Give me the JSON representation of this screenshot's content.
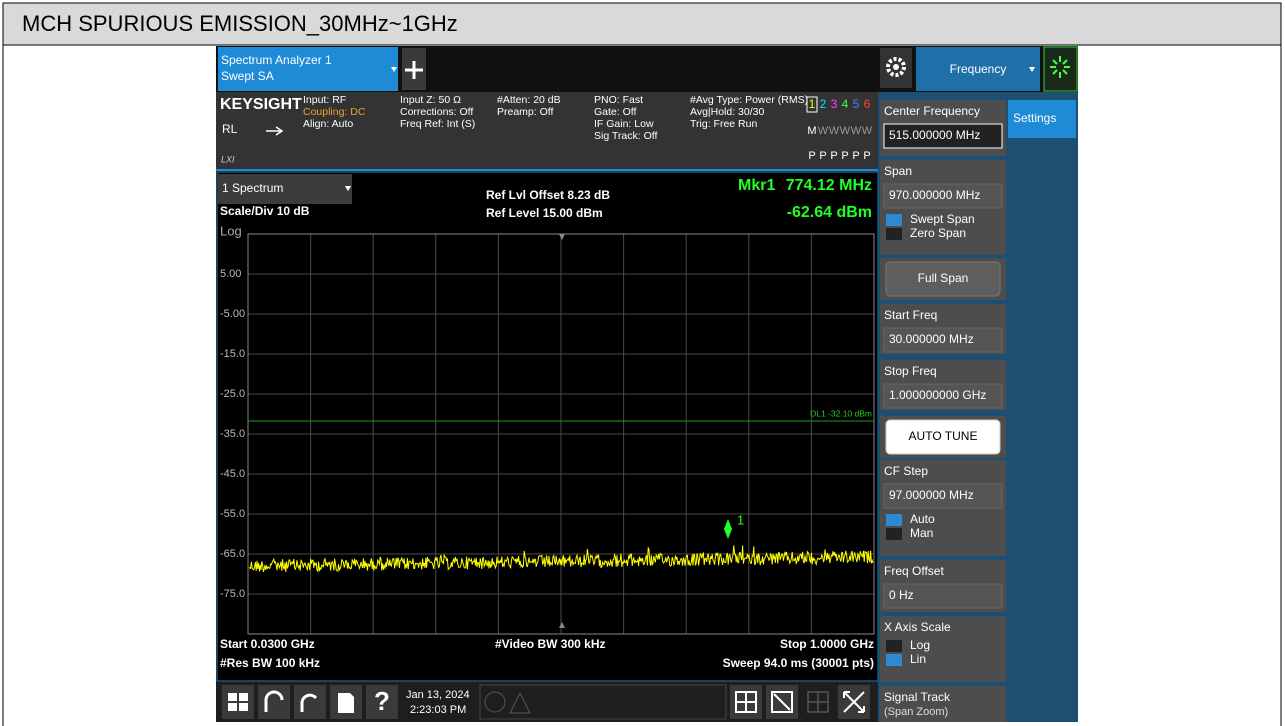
{
  "title": "MCH SPURIOUS EMISSION_30MHz~1GHz",
  "tabs": {
    "analyzer": [
      "Spectrum Analyzer 1",
      "Swept SA"
    ],
    "menu": "Frequency",
    "settings": "Settings"
  },
  "header": {
    "brand": "KEYSIGHT",
    "rl": "RL",
    "lxi": "LXI",
    "columns": [
      [
        "Input: RF",
        "Coupling: DC",
        "Align: Auto"
      ],
      [
        "Input Z: 50 Ω",
        "Corrections: Off",
        "Freq Ref: Int (S)"
      ],
      [
        "#Atten: 20 dB",
        "Preamp: Off"
      ],
      [
        "PNO: Fast",
        "Gate: Off",
        "IF Gain: Low",
        "Sig Track: Off"
      ],
      [
        "#Avg Type: Power (RMS)",
        "Avg|Hold: 30/30",
        "Trig: Free Run"
      ]
    ],
    "traces": {
      "numbers": [
        "1",
        "2",
        "3",
        "4",
        "5",
        "6"
      ],
      "number_colors": [
        "#ffff00",
        "#00e5ff",
        "#ff40ff",
        "#40ff40",
        "#4080ff",
        "#ff4040"
      ],
      "modes": [
        "M",
        "W",
        "W",
        "W",
        "W",
        "W"
      ],
      "detectors": [
        "P",
        "P",
        "P",
        "P",
        "P",
        "P"
      ]
    }
  },
  "plot": {
    "window": "1 Spectrum",
    "scale": "Scale/Div 10 dB",
    "log": "Log",
    "ref_offset": "Ref Lvl Offset 8.23 dB",
    "ref_level": "Ref Level 15.00 dBm",
    "marker": {
      "name": "Mkr1",
      "freq": "774.12 MHz",
      "level": "-62.64 dBm",
      "index": "1"
    },
    "y_labels": [
      "5.00",
      "-5.00",
      "-15.0",
      "-25.0",
      "-35.0",
      "-45.0",
      "-55.0",
      "-65.0",
      "-75.0"
    ],
    "display_line": "DL1 -32.10 dBm",
    "footer": {
      "start": "Start 0.0300 GHz",
      "res_bw": "#Res BW 100 kHz",
      "video_bw": "#Video BW 300 kHz",
      "stop": "Stop 1.0000 GHz",
      "sweep": "Sweep 94.0 ms (30001 pts)"
    }
  },
  "taskbar": {
    "date": "Jan 13, 2024",
    "time": "2:23:03 PM"
  },
  "panel": [
    {
      "label": "Center Frequency",
      "value": "515.000000 MHz"
    },
    {
      "label": "Span",
      "value": "970.000000 MHz",
      "options": [
        "Swept Span",
        "Zero Span"
      ],
      "selected": 0
    },
    {
      "button": "Full Span"
    },
    {
      "label": "Start Freq",
      "value": "30.000000 MHz"
    },
    {
      "label": "Stop Freq",
      "value": "1.000000000 GHz"
    },
    {
      "button": "AUTO TUNE"
    },
    {
      "label": "CF Step",
      "value": "97.000000 MHz",
      "options": [
        "Auto",
        "Man"
      ],
      "selected": 0
    },
    {
      "label": "Freq Offset",
      "value": "0 Hz"
    },
    {
      "label": "X Axis Scale",
      "options": [
        "Log",
        "Lin"
      ],
      "selected": 1
    },
    {
      "label": "Signal Track",
      "sub": "(Span Zoom)"
    }
  ]
}
